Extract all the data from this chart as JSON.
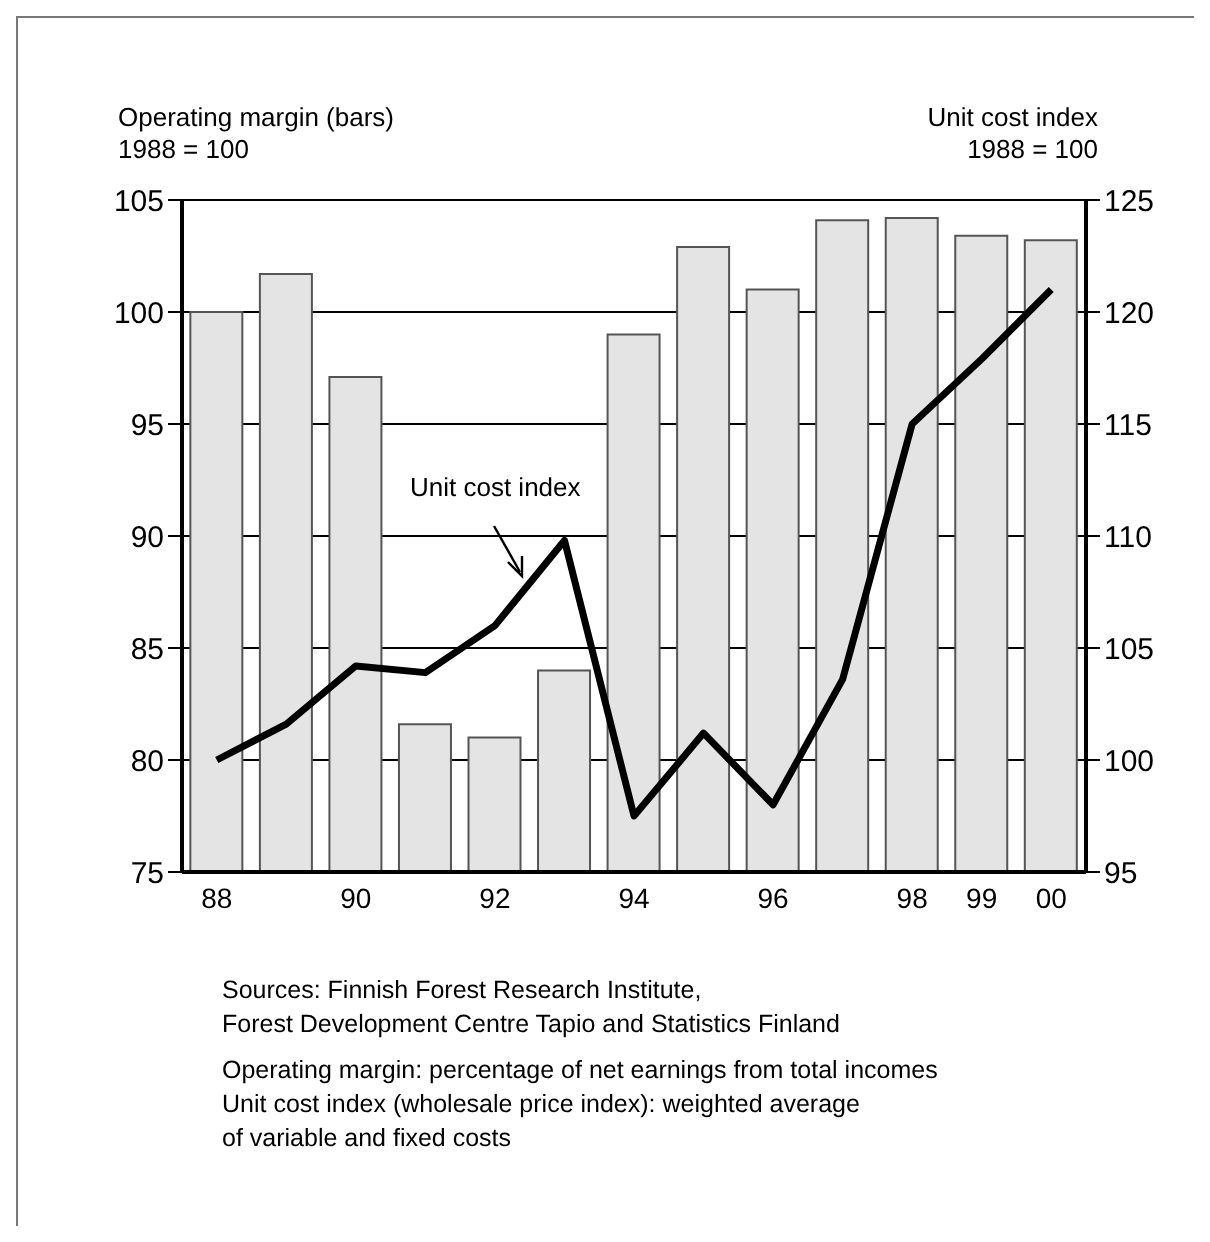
{
  "chart_data": {
    "type": "bar",
    "ylabel": "Operating margin (bars)\n1988 = 100",
    "y2label": "Unit cost index\n1988 = 100",
    "categories": [
      "88",
      null,
      "90",
      null,
      "92",
      null,
      "94",
      null,
      "96",
      null,
      "98",
      "99",
      "00"
    ],
    "series": [
      {
        "color": "#e4e4e4",
        "values": [
          100,
          101.7,
          97.1,
          81.6,
          81.0,
          84.0,
          99.0,
          102.9,
          101.0,
          104.1,
          104.2,
          103.4,
          103.2
        ]
      },
      {
        "type": "line",
        "axis": "y2",
        "name": "Unit cost index",
        "color": "#000000",
        "values": [
          100,
          101.6,
          104.2,
          103.9,
          106.0,
          109.8,
          97.5,
          101.2,
          98.0,
          103.6,
          115.0,
          117.9,
          121.0
        ]
      }
    ],
    "ylim": [
      75,
      105
    ],
    "yticks": [
      75,
      80,
      85,
      90,
      95,
      100,
      105
    ],
    "y2lim": [
      95,
      125
    ],
    "y2ticks": [
      95,
      100,
      105,
      110,
      115,
      120,
      125
    ],
    "grid": "y",
    "marker": "none",
    "line_style": "solid",
    "annotations": [
      "Sources: Finnish Forest Research Institute,\nForest Development Centre Tapio and Statistics Finland",
      "Operating margin: percentage of net earnings from total incomes\nUnit cost index (wholesale price index): weighted average\nof variable and fixed costs"
    ]
  }
}
